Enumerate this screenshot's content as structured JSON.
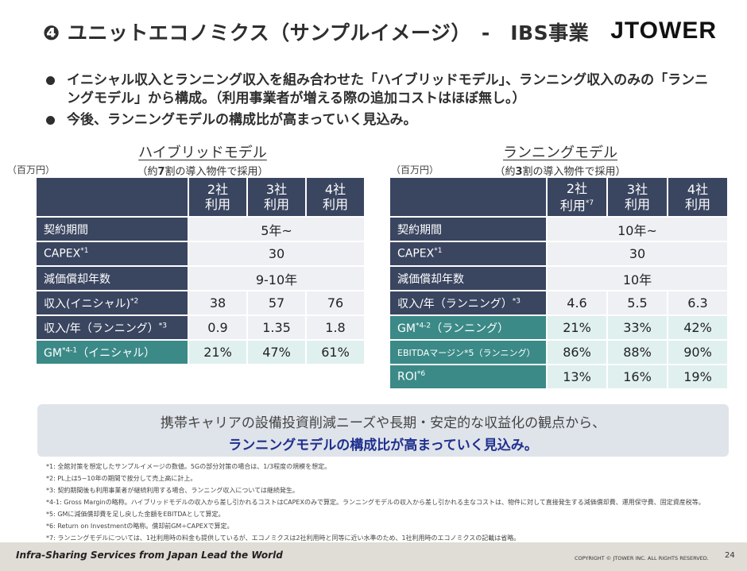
{
  "header": {
    "title": "❹ ユニットエコノミクス（サンプルイメージ）　-　IBS事業",
    "logo": "JTOWER"
  },
  "bullets": [
    "イニシャル収入とランニング収入を組み合わせた「ハイブリッドモデル」、ランニング収入のみの「ランニングモデル」から構成。（利用事業者が増える際の追加コストはほぼ無し。）",
    "今後、ランニングモデルの構成比が高まっていく見込み。"
  ],
  "unit_label": "（百万円）",
  "hybrid": {
    "name": "ハイブリッドモデル",
    "sub_before": "（約",
    "sub_num": "7",
    "sub_after": "割の導入物件で採用）",
    "cols": [
      {
        "l1": "2社",
        "l2": "利用"
      },
      {
        "l1": "3社",
        "l2": "利用"
      },
      {
        "l1": "4社",
        "l2": "利用"
      }
    ],
    "rows": [
      {
        "label": "契約期間",
        "sup": "",
        "suffix": "",
        "span": "5年~"
      },
      {
        "label": "CAPEX",
        "sup": "*1",
        "suffix": "",
        "span": "30"
      },
      {
        "label": "減価償却年数",
        "sup": "",
        "suffix": "",
        "span": "9-10年"
      },
      {
        "label": "収入(イニシャル)",
        "sup": "*2",
        "suffix": "",
        "values": [
          "38",
          "57",
          "76"
        ]
      },
      {
        "label": "収入/年（ランニング）",
        "sup": "*3",
        "suffix": "",
        "values": [
          "0.9",
          "1.35",
          "1.8"
        ]
      },
      {
        "label": "GM",
        "sup": "*4-1",
        "suffix": "（イニシャル）",
        "values": [
          "21%",
          "47%",
          "61%"
        ]
      }
    ]
  },
  "running": {
    "name": "ランニングモデル",
    "sub_before": "（約",
    "sub_num": "3",
    "sub_after": "割の導入物件で採用）",
    "cols": [
      {
        "l1": "2社",
        "l2": "利用",
        "sup": "*7"
      },
      {
        "l1": "3社",
        "l2": "利用",
        "sup": ""
      },
      {
        "l1": "4社",
        "l2": "利用",
        "sup": ""
      }
    ],
    "rows": [
      {
        "label": "契約期間",
        "sup": "",
        "suffix": "",
        "span": "10年~"
      },
      {
        "label": "CAPEX",
        "sup": "*1",
        "suffix": "",
        "span": "30"
      },
      {
        "label": "減価償却年数",
        "sup": "",
        "suffix": "",
        "span": "10年"
      },
      {
        "label": "収入/年（ランニング）",
        "sup": "*3",
        "suffix": "",
        "values": [
          "4.6",
          "5.5",
          "6.3"
        ]
      },
      {
        "label": "GM",
        "sup": "*4-2",
        "suffix": "（ランニング）",
        "values": [
          "21%",
          "33%",
          "42%"
        ]
      },
      {
        "label": "EBITDAマージン*5（ランニング）",
        "sup": "",
        "suffix": "",
        "values": [
          "86%",
          "88%",
          "90%"
        ]
      },
      {
        "label": "ROI",
        "sup": "*6",
        "suffix": "",
        "values": [
          "13%",
          "16%",
          "19%"
        ]
      }
    ]
  },
  "callout": {
    "line1": "携帯キャリアの設備投資削減ニーズや長期・安定的な収益化の観点から、",
    "line2": "ランニングモデルの構成比が高まっていく見込み。"
  },
  "notes": [
    "*1: 全館対策を想定したサンプルイメージの数値。5Gの部分対策の場合は、1/3程度の規模を想定。",
    "*2: PL上は5~10年の期間で按分して売上高に計上。",
    "*3: 契約期間後も利用事業者が継続利用する場合、ランニング収入については継続発生。",
    "*4-1: Gross Marginの略称。ハイブリッドモデルの収入から差し引かれるコストはCAPEXのみで算定。ランニングモデルの収入から差し引かれる主なコストは、物件に対して直接発生する減価償却費、運用保守費、固定資産税等。",
    "*5: GMに減価償却費を足し戻した金額をEBITDAとして算定。",
    "*6: Return on Investmentの略称。償却前GM÷CAPEXで算定。",
    "*7: ランニングモデルについては、1社利用時の料金も提供しているが、エコノミクスは2社利用時と同等に近い水準のため、1社利用時のエコノミクスの記載は省略。"
  ],
  "footer": {
    "tagline": "Infra-Sharing Services from Japan Lead the World",
    "copyright": "COPYRIGHT © JTOWER INC. ALL RIGHTS RESERVED.",
    "page": "24"
  },
  "colors": {
    "header_navy": "#3a4560",
    "teal": "#3b8a87",
    "callout_blue": "#1f2f8f",
    "footer_bg": "#e0dcd6"
  }
}
